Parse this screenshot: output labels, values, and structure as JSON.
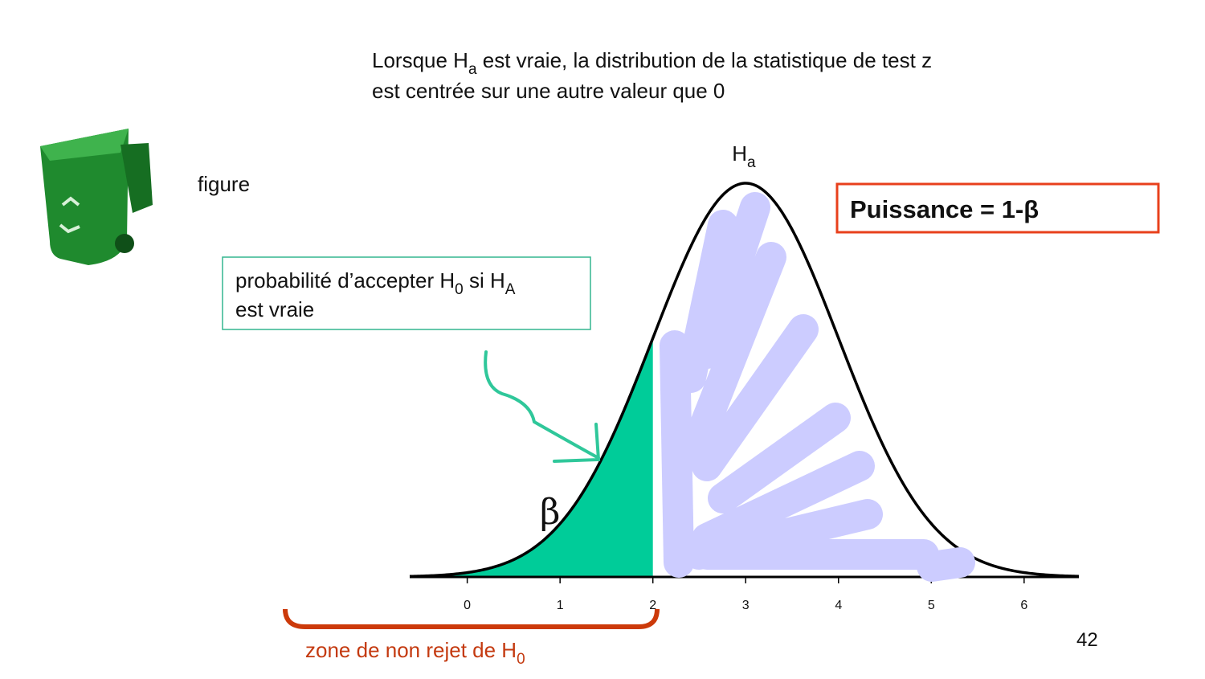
{
  "header": {
    "line1": {
      "before": "Lorsque H",
      "sub": "a",
      "after": " est vraie, la distribution de la statistique de test z"
    },
    "line2": "est centrée sur une autre valeur que 0"
  },
  "figure_label": "figure",
  "note_box": {
    "text1": "probabilité d’accepter H",
    "sub1": "0",
    "text2": " si H",
    "sub2": "A",
    "line2": "est vraie"
  },
  "power_box": {
    "text": "Puissance = 1-β"
  },
  "zone_label": {
    "text": "zone de non rejet de H",
    "sub": "0"
  },
  "page_number": "42",
  "chart_data": {
    "type": "normal",
    "curve_label": {
      "main": "H",
      "sub": "a"
    },
    "beta_label": "β",
    "mean": 3,
    "sd": 1,
    "threshold": 2,
    "color": "#00cc99",
    "xlim": [
      -0.62,
      6.59
    ],
    "xticks": [
      0,
      1,
      2,
      3,
      4,
      5,
      6
    ]
  }
}
